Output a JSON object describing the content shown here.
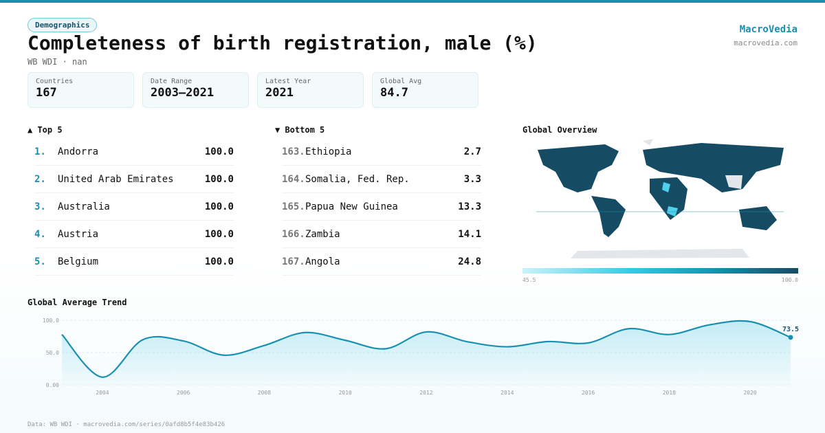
{
  "header": {
    "tag": "Demographics",
    "title": "Completeness of birth registration, male (%)",
    "subtitle": "WB WDI · nan",
    "brand": "MacroVedia",
    "site": "macrovedia.com"
  },
  "stats": [
    {
      "label": "Countries",
      "value": "167"
    },
    {
      "label": "Date Range",
      "value": "2003–2021"
    },
    {
      "label": "Latest Year",
      "value": "2021"
    },
    {
      "label": "Global Avg",
      "value": "84.7"
    }
  ],
  "top5": {
    "title": "▲ Top 5",
    "rows": [
      {
        "rank": "1.",
        "name": "Andorra",
        "value": "100.0"
      },
      {
        "rank": "2.",
        "name": "United Arab Emirates",
        "value": "100.0"
      },
      {
        "rank": "3.",
        "name": "Australia",
        "value": "100.0"
      },
      {
        "rank": "4.",
        "name": "Austria",
        "value": "100.0"
      },
      {
        "rank": "5.",
        "name": "Belgium",
        "value": "100.0"
      }
    ]
  },
  "bottom5": {
    "title": "▼ Bottom 5",
    "rows": [
      {
        "rank": "163.",
        "name": "Ethiopia",
        "value": "2.7"
      },
      {
        "rank": "164.",
        "name": "Somalia, Fed. Rep.",
        "value": "3.3"
      },
      {
        "rank": "165.",
        "name": "Papua New Guinea",
        "value": "13.3"
      },
      {
        "rank": "166.",
        "name": "Zambia",
        "value": "14.1"
      },
      {
        "rank": "167.",
        "name": "Angola",
        "value": "24.8"
      }
    ]
  },
  "map": {
    "title": "Global Overview",
    "legend_min": "45.5",
    "legend_max": "100.0"
  },
  "chart_data": {
    "type": "line",
    "title": "Global Average Trend",
    "color": "#1a8fb0",
    "x": [
      2003,
      2004,
      2005,
      2006,
      2007,
      2008,
      2009,
      2010,
      2011,
      2012,
      2013,
      2014,
      2015,
      2016,
      2017,
      2018,
      2019,
      2020,
      2021
    ],
    "values": [
      78,
      12,
      70,
      68,
      46,
      61,
      81,
      69,
      56,
      82,
      67,
      59,
      67,
      65,
      87,
      78,
      93,
      98,
      73.5
    ],
    "xlim": [
      2003,
      2021
    ],
    "xticks": [
      2004,
      2006,
      2008,
      2010,
      2012,
      2014,
      2016,
      2018,
      2020
    ],
    "ylim": [
      0,
      100
    ],
    "yticks": [
      {
        "value": 0,
        "label": "0.00"
      },
      {
        "value": 50,
        "label": "50.0"
      },
      {
        "value": 100,
        "label": "100.0"
      }
    ],
    "grid": true
  },
  "footer": "Data: WB WDI · macrovedia.com/series/0afd8b5f4e83b426"
}
